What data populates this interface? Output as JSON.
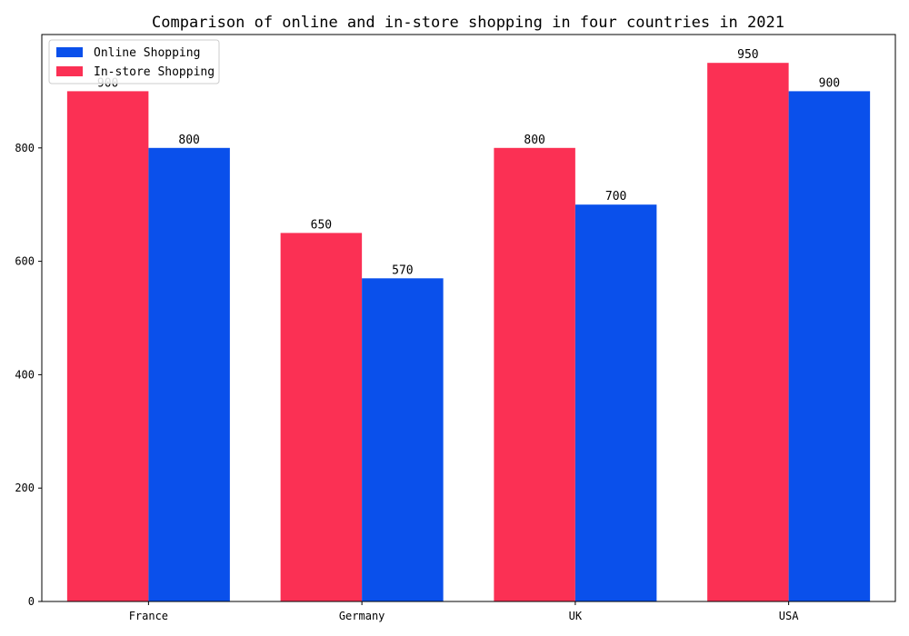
{
  "chart_data": {
    "type": "bar",
    "title": "Comparison of online and in-store shopping in four countries in 2021",
    "xlabel": "",
    "ylabel": "",
    "categories": [
      "France",
      "Germany",
      "UK",
      "USA"
    ],
    "series": [
      {
        "name": "In-store Shopping",
        "values": [
          900,
          650,
          800,
          950
        ],
        "color": "#fb3054"
      },
      {
        "name": "Online Shopping",
        "values": [
          800,
          570,
          700,
          900
        ],
        "color": "#0a50eb"
      }
    ],
    "legend_order": [
      "Online Shopping",
      "In-store Shopping"
    ],
    "legend_position": "top-left",
    "ylim": [
      0,
      1000
    ],
    "yticks": [
      0,
      200,
      400,
      600,
      800
    ],
    "grid": false
  }
}
